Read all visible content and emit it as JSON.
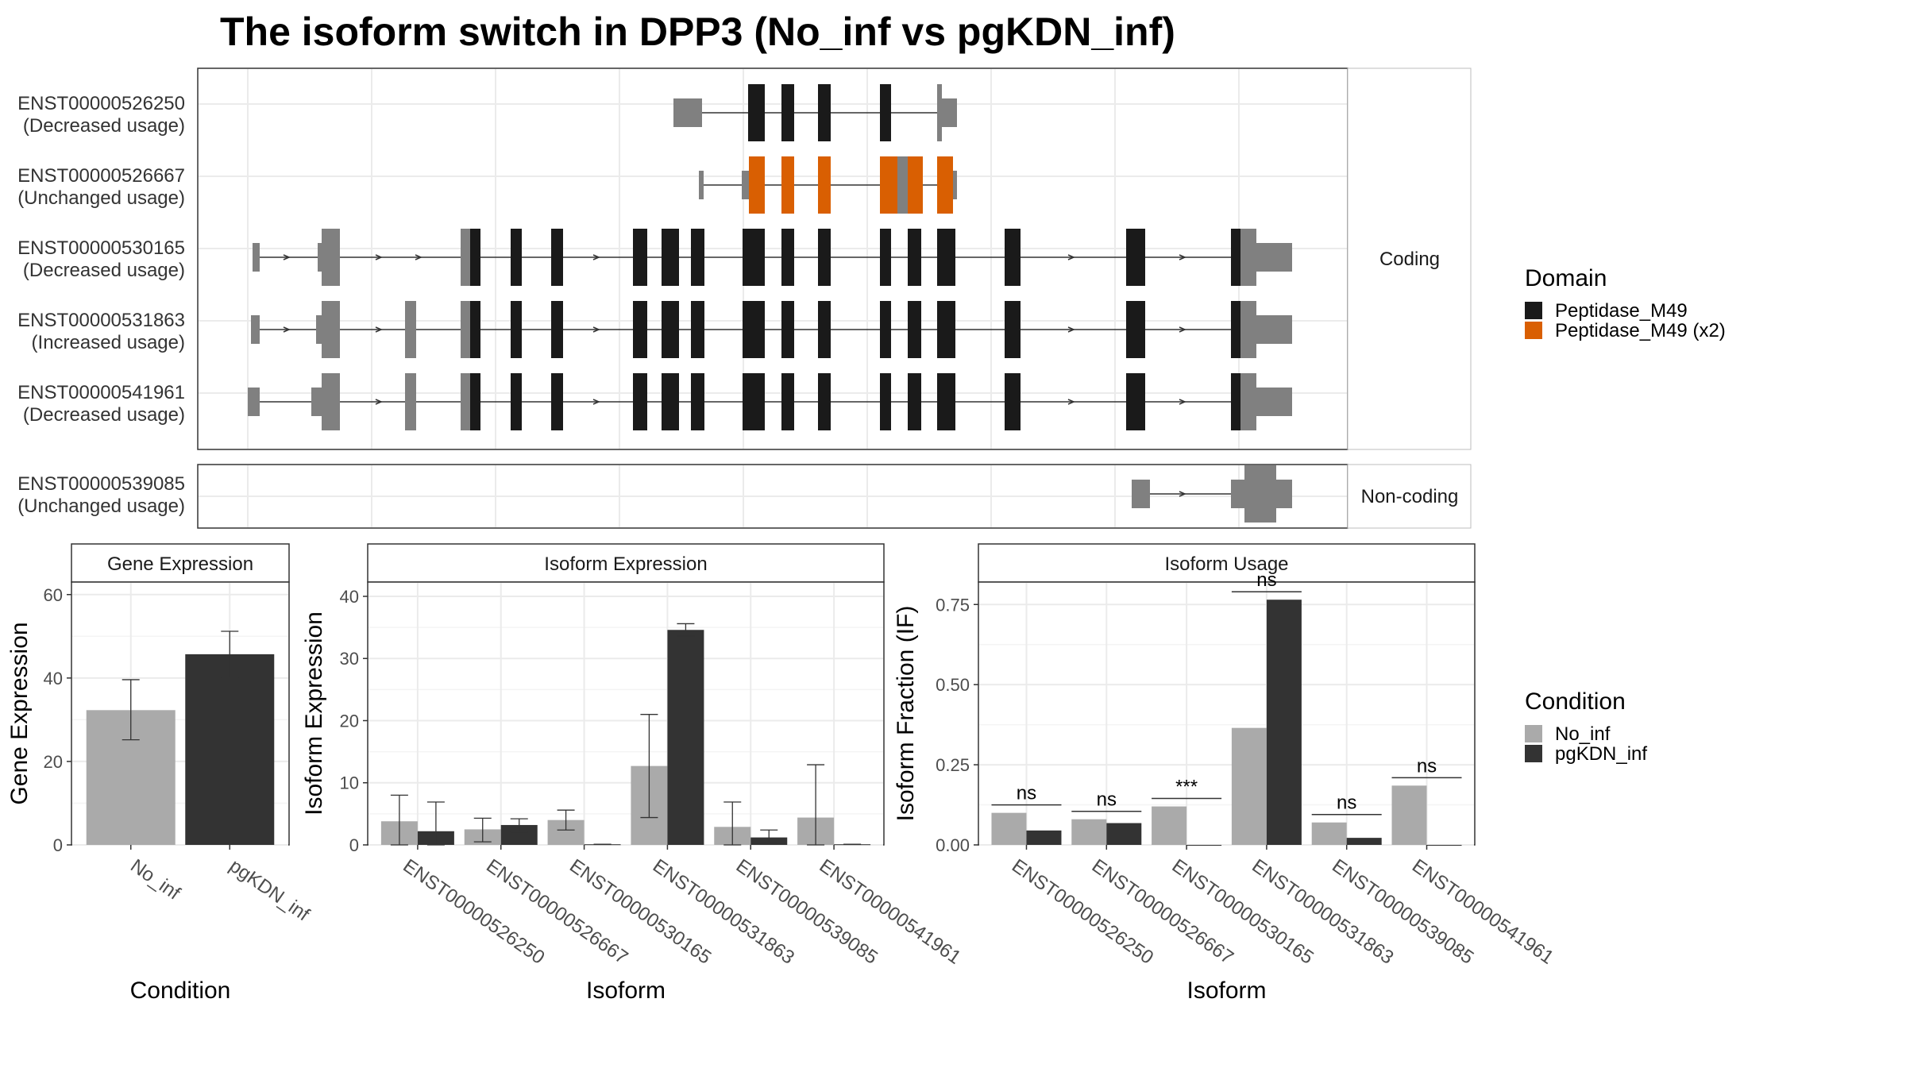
{
  "title": "The isoform switch in DPP3 (No_inf vs pgKDN_inf)",
  "colors": {
    "utr_grey": "#808080",
    "domain_black": "#1a1a1a",
    "domain_orange": "#d95f02",
    "no_inf": "#aaaaaa",
    "pgkdn_inf": "#333333",
    "grid": "#ebebeb",
    "strip_bg": "#ffffff"
  },
  "structure": {
    "coding_label": "Coding",
    "noncoding_label": "Non-coding",
    "transcripts": [
      {
        "id": "ENST00000526250",
        "usage": "(Decreased usage)",
        "group": "coding"
      },
      {
        "id": "ENST00000526667",
        "usage": "(Unchanged usage)",
        "group": "coding"
      },
      {
        "id": "ENST00000530165",
        "usage": "(Decreased usage)",
        "group": "coding"
      },
      {
        "id": "ENST00000531863",
        "usage": "(Increased usage)",
        "group": "coding"
      },
      {
        "id": "ENST00000541961",
        "usage": "(Decreased usage)",
        "group": "coding"
      },
      {
        "id": "ENST00000539085",
        "usage": "(Unchanged usage)",
        "group": "noncoding"
      }
    ]
  },
  "legends": {
    "domain_title": "Domain",
    "domain_items": [
      {
        "label": "Peptidase_M49",
        "color": "#1a1a1a"
      },
      {
        "label": "Peptidase_M49 (x2)",
        "color": "#d95f02"
      }
    ],
    "condition_title": "Condition",
    "condition_items": [
      {
        "label": "No_inf",
        "color": "#aaaaaa"
      },
      {
        "label": "pgKDN_inf",
        "color": "#333333"
      }
    ]
  },
  "chart_data": [
    {
      "type": "bar",
      "panel": "Gene Expression",
      "categories": [
        "No_inf",
        "pgKDN_inf"
      ],
      "values": [
        32.3,
        45.7
      ],
      "error_low": [
        25.2,
        40.1
      ],
      "error_high": [
        39.6,
        51.2
      ],
      "xlabel": "Condition",
      "ylabel": "Gene Expression",
      "ylim": [
        0,
        63
      ],
      "yticks": [
        0,
        20,
        40,
        60
      ]
    },
    {
      "type": "bar",
      "panel": "Isoform Expression",
      "categories": [
        "ENST00000526250",
        "ENST00000526667",
        "ENST00000530165",
        "ENST00000531863",
        "ENST00000539085",
        "ENST00000541961"
      ],
      "series": [
        {
          "name": "No_inf",
          "values": [
            3.8,
            2.5,
            4.0,
            12.7,
            2.9,
            4.4
          ],
          "error_low": [
            0.0,
            0.5,
            2.4,
            4.4,
            0.0,
            0.0
          ],
          "error_high": [
            8.0,
            4.3,
            5.6,
            21.0,
            6.9,
            12.9
          ]
        },
        {
          "name": "pgKDN_inf",
          "values": [
            2.2,
            3.2,
            0.1,
            34.6,
            1.2,
            0.1
          ],
          "error_low": [
            0.0,
            2.1,
            0.1,
            33.6,
            0.2,
            0.1
          ],
          "error_high": [
            6.9,
            4.2,
            0.1,
            35.6,
            2.4,
            0.1
          ]
        }
      ],
      "xlabel": "Isoform",
      "ylabel": "Isoform Expression",
      "ylim": [
        0,
        42.3
      ],
      "yticks": [
        0,
        10,
        20,
        30,
        40
      ]
    },
    {
      "type": "bar",
      "panel": "Isoform Usage",
      "categories": [
        "ENST00000526250",
        "ENST00000526667",
        "ENST00000530165",
        "ENST00000531863",
        "ENST00000539085",
        "ENST00000541961"
      ],
      "series": [
        {
          "name": "No_inf",
          "values": [
            0.1,
            0.08,
            0.12,
            0.365,
            0.07,
            0.185
          ]
        },
        {
          "name": "pgKDN_inf",
          "values": [
            0.045,
            0.068,
            0.0,
            0.765,
            0.022,
            0.0
          ]
        }
      ],
      "significance": [
        "ns",
        "ns",
        "***",
        "ns",
        "ns",
        "ns"
      ],
      "xlabel": "Isoform",
      "ylabel": "Isoform Fraction (IF)",
      "ylim": [
        0,
        0.82
      ],
      "yticks": [
        "0.00",
        "0.25",
        "0.50",
        "0.75"
      ],
      "ytick_values": [
        0,
        0.25,
        0.5,
        0.75
      ]
    }
  ]
}
